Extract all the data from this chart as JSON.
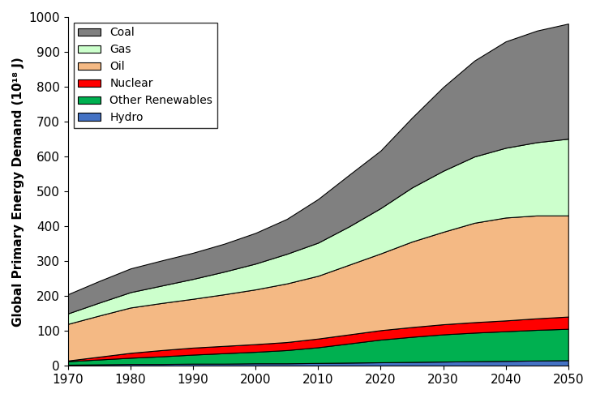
{
  "years": [
    1970,
    1975,
    1980,
    1985,
    1990,
    1995,
    2000,
    2005,
    2010,
    2015,
    2020,
    2025,
    2030,
    2035,
    2040,
    2045,
    2050
  ],
  "hydro": [
    3,
    4,
    5,
    5,
    6,
    6,
    7,
    7,
    8,
    9,
    10,
    11,
    12,
    13,
    14,
    15,
    16
  ],
  "other_renewables": [
    10,
    14,
    18,
    22,
    26,
    30,
    33,
    38,
    45,
    55,
    65,
    72,
    78,
    82,
    85,
    88,
    90
  ],
  "nuclear": [
    2,
    8,
    14,
    18,
    20,
    21,
    22,
    23,
    25,
    26,
    27,
    28,
    29,
    30,
    31,
    33,
    35
  ],
  "oil": [
    105,
    118,
    130,
    135,
    140,
    148,
    157,
    168,
    180,
    200,
    220,
    245,
    265,
    285,
    295,
    295,
    290
  ],
  "gas": [
    30,
    37,
    44,
    50,
    57,
    65,
    74,
    85,
    95,
    110,
    130,
    155,
    175,
    190,
    200,
    210,
    220
  ],
  "coal": [
    55,
    62,
    68,
    72,
    75,
    80,
    88,
    100,
    125,
    148,
    165,
    200,
    240,
    275,
    305,
    320,
    330
  ],
  "colors": {
    "hydro": "#4472C4",
    "other_renewables": "#00B050",
    "nuclear": "#FF0000",
    "oil": "#F4B984",
    "gas": "#CCFFCC",
    "coal": "#808080"
  },
  "labels": {
    "hydro": "Hydro",
    "other_renewables": "Other Renewables",
    "nuclear": "Nuclear",
    "oil": "Oil",
    "gas": "Gas",
    "coal": "Coal"
  },
  "ylabel": "Global Primary Energy Demand (10¹⁸ J)",
  "ylim": [
    0,
    1000
  ],
  "xlim": [
    1970,
    2050
  ],
  "yticks": [
    0,
    100,
    200,
    300,
    400,
    500,
    600,
    700,
    800,
    900,
    1000
  ],
  "xticks": [
    1970,
    1980,
    1990,
    2000,
    2010,
    2020,
    2030,
    2040,
    2050
  ]
}
